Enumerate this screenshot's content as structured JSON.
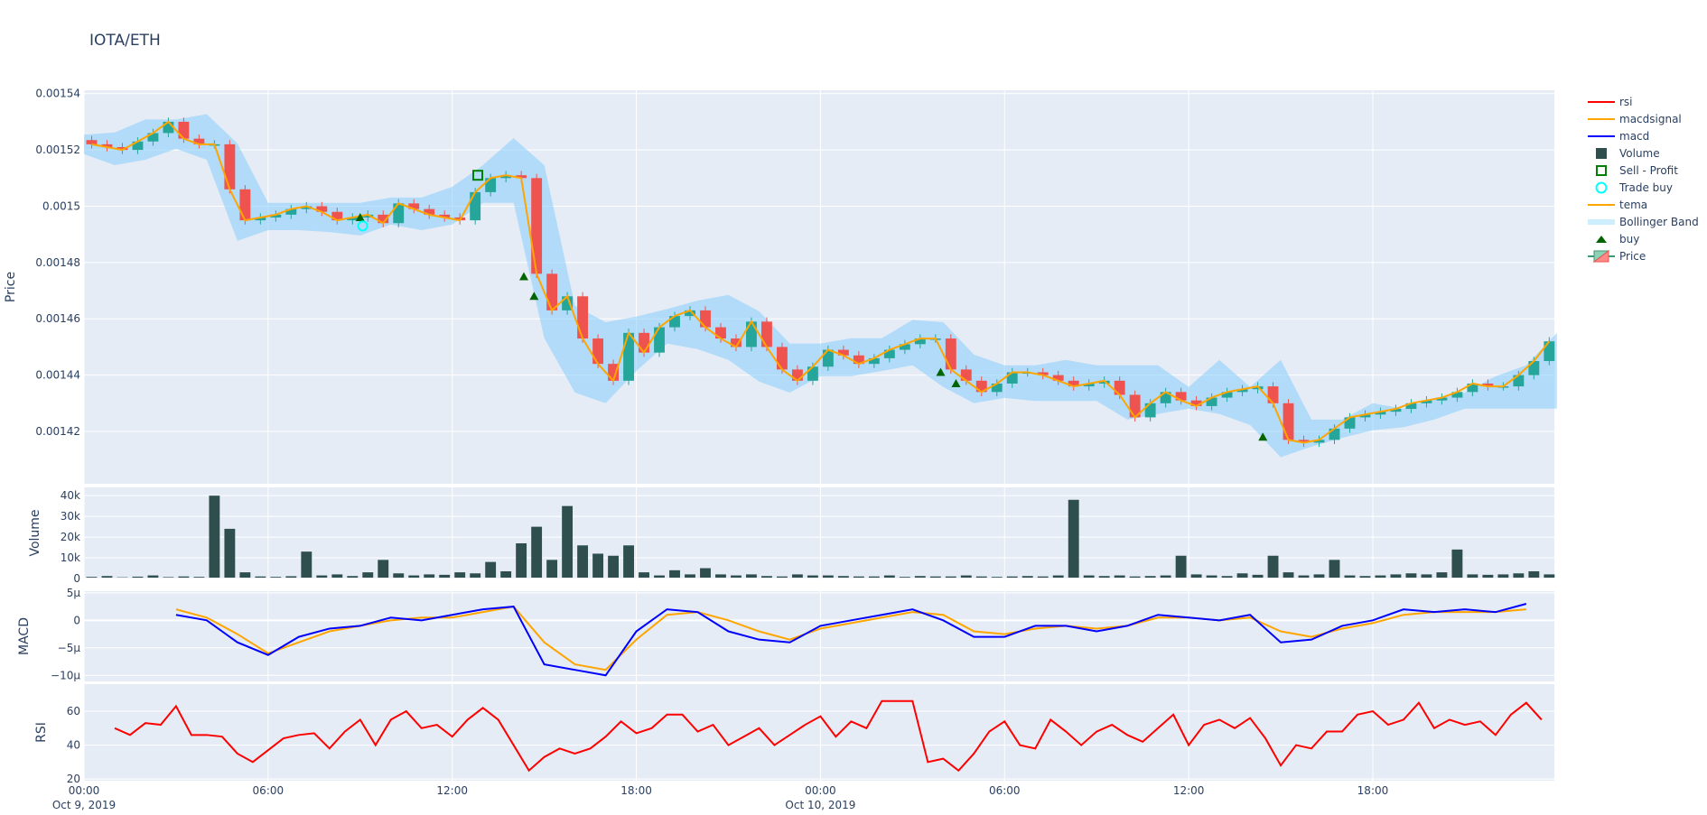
{
  "chart_data": {
    "type": "candlestick",
    "title": "IOTA/ETH",
    "x_range": [
      "2019-10-09 00:00",
      "2019-10-10 23:55"
    ],
    "x_ticks": [
      {
        "time": "00:00",
        "date": "Oct 9, 2019"
      },
      {
        "time": "06:00",
        "date": ""
      },
      {
        "time": "12:00",
        "date": ""
      },
      {
        "time": "18:00",
        "date": ""
      },
      {
        "time": "00:00",
        "date": "Oct 10, 2019"
      },
      {
        "time": "06:00",
        "date": ""
      },
      {
        "time": "12:00",
        "date": ""
      },
      {
        "time": "18:00",
        "date": ""
      }
    ],
    "grid": true,
    "legend_placement": "right",
    "legend": [
      "rsi",
      "macdsignal",
      "macd",
      "Volume",
      "Sell - Profit",
      "Trade buy",
      "tema",
      "Bollinger Band",
      "buy",
      "Price"
    ],
    "colors": {
      "increasing": "#26a69a",
      "decreasing": "#ef5350",
      "tema": "#ffa500",
      "bollinger": "#87cefa",
      "volume": "#2f4f4f",
      "macd": "#0000ff",
      "macdsignal": "#ffa500",
      "rsi": "#ff0000",
      "buy": "#006400",
      "sell_profit": "#008000",
      "trade_buy": "#00ffff",
      "plot_bg": "#e5ecf6"
    },
    "panels": {
      "price": {
        "ylabel": "Price",
        "ylim": [
          0.0014014,
          0.0015412
        ],
        "ticks": [
          {
            "v": 0.00142,
            "label": "0.00142"
          },
          {
            "v": 0.00144,
            "label": "0.00144"
          },
          {
            "v": 0.00146,
            "label": "0.00146"
          },
          {
            "v": 0.00148,
            "label": "0.00148"
          },
          {
            "v": 0.0015,
            "label": "0.0015"
          },
          {
            "v": 0.00152,
            "label": "0.00152"
          },
          {
            "v": 0.00154,
            "label": "0.00154"
          }
        ]
      },
      "volume": {
        "ylabel": "Volume",
        "ylim": [
          0,
          44000
        ],
        "ticks": [
          {
            "v": 0,
            "label": "0"
          },
          {
            "v": 10000,
            "label": "10k"
          },
          {
            "v": 20000,
            "label": "20k"
          },
          {
            "v": 30000,
            "label": "30k"
          },
          {
            "v": 40000,
            "label": "40k"
          }
        ]
      },
      "macd": {
        "ylabel": "MACD",
        "ylim": [
          -1.11e-05,
          5.3e-06
        ],
        "ticks": [
          {
            "v": 5e-06,
            "label": "5μ"
          },
          {
            "v": 0,
            "label": "0"
          },
          {
            "v": -5e-06,
            "label": "−5μ"
          },
          {
            "v": -1e-05,
            "label": "−10μ"
          }
        ]
      },
      "rsi": {
        "ylabel": "RSI",
        "ylim": [
          19,
          76
        ],
        "ticks": [
          {
            "v": 20,
            "label": "20"
          },
          {
            "v": 40,
            "label": "40"
          },
          {
            "v": 60,
            "label": "60"
          }
        ]
      }
    },
    "candles": {
      "start": "2019-10-09 00:00",
      "interval_minutes": 30,
      "close": [
        0.001522,
        0.001521,
        0.00152,
        0.001523,
        0.001526,
        0.00153,
        0.001524,
        0.001522,
        0.001522,
        0.001506,
        0.001495,
        0.001496,
        0.001497,
        0.001499,
        0.0015,
        0.001498,
        0.001495,
        0.001496,
        0.001497,
        0.001494,
        0.001501,
        0.001499,
        0.001497,
        0.001496,
        0.001495,
        0.001505,
        0.00151,
        0.001511,
        0.00151,
        0.001476,
        0.001463,
        0.001468,
        0.001453,
        0.001444,
        0.001438,
        0.001455,
        0.001448,
        0.001457,
        0.001461,
        0.001463,
        0.001457,
        0.001453,
        0.00145,
        0.001459,
        0.00145,
        0.001442,
        0.001438,
        0.001443,
        0.001449,
        0.001447,
        0.001444,
        0.001446,
        0.001449,
        0.001451,
        0.001453,
        0.001453,
        0.001442,
        0.001438,
        0.001434,
        0.001437,
        0.001441,
        0.001441,
        0.00144,
        0.001438,
        0.001436,
        0.001437,
        0.001438,
        0.001433,
        0.001425,
        0.00143,
        0.001434,
        0.001431,
        0.001429,
        0.001432,
        0.001434,
        0.001435,
        0.001436,
        0.00143,
        0.001417,
        0.001416,
        0.001417,
        0.001421,
        0.001425,
        0.001426,
        0.001427,
        0.001428,
        0.00143,
        0.001431,
        0.001432,
        0.001434,
        0.001437,
        0.001436,
        0.001436,
        0.00144,
        0.001445,
        0.001452
      ],
      "volume": [
        800,
        1200,
        600,
        900,
        1500,
        700,
        1000,
        800,
        40000,
        24000,
        3000,
        1000,
        800,
        1100,
        13000,
        1500,
        2000,
        1200,
        3000,
        9000,
        2500,
        1500,
        2000,
        1800,
        3000,
        2500,
        8000,
        3500,
        17000,
        25000,
        9000,
        35000,
        16000,
        12000,
        11000,
        16000,
        3000,
        1500,
        4000,
        2000,
        5000,
        2000,
        1500,
        2000,
        1200,
        1000,
        2000,
        1500,
        1500,
        1200,
        1000,
        1000,
        1500,
        800,
        1200,
        1000,
        1000,
        1500,
        1000,
        800,
        1000,
        1200,
        1000,
        1500,
        38000,
        1500,
        1200,
        1500,
        1000,
        1200,
        1500,
        11000,
        2000,
        1500,
        1200,
        2500,
        1800,
        11000,
        3000,
        1500,
        2000,
        9000,
        1500,
        1200,
        1500,
        2000,
        2500,
        2000,
        3000,
        14000,
        2000,
        1800,
        2000,
        2500,
        3500,
        2000
      ]
    },
    "bollinger": {
      "start": "2019-10-09 00:00",
      "interval_minutes": 60,
      "upper": [
        0.0015254,
        0.0015262,
        0.0015308,
        0.0015308,
        0.0015327,
        0.0015223,
        0.0015012,
        0.0015012,
        0.0015012,
        0.0015012,
        0.0015031,
        0.0015031,
        0.0015069,
        0.0015146,
        0.0015242,
        0.0015146,
        0.0014646,
        0.0014588,
        0.0014608,
        0.0014635,
        0.0014665,
        0.0014685,
        0.0014627,
        0.0014512,
        0.0014512,
        0.0014531,
        0.0014531,
        0.0014596,
        0.0014588,
        0.0014473,
        0.0014435,
        0.0014435,
        0.0014454,
        0.0014435,
        0.0014435,
        0.0014435,
        0.0014358,
        0.0014454,
        0.0014358,
        0.0014454,
        0.0014242,
        0.0014242,
        0.00143,
        0.0014281,
        0.0014319,
        0.0014338,
        0.0014396,
        0.0014435,
        0.001455
      ],
      "lower": [
        0.0015185,
        0.0015146,
        0.0015165,
        0.0015204,
        0.0015165,
        0.0014877,
        0.0014915,
        0.0014915,
        0.0014908,
        0.0014896,
        0.0014935,
        0.0014915,
        0.0014935,
        0.0015012,
        0.0015012,
        0.0014531,
        0.0014338,
        0.00143,
        0.0014415,
        0.0014512,
        0.0014492,
        0.0014454,
        0.0014377,
        0.0014338,
        0.0014396,
        0.0014396,
        0.0014415,
        0.0014435,
        0.0014358,
        0.00143,
        0.0014319,
        0.0014308,
        0.0014308,
        0.0014308,
        0.0014242,
        0.0014262,
        0.0014281,
        0.0014262,
        0.0014223,
        0.0014108,
        0.0014146,
        0.0014177,
        0.0014204,
        0.0014215,
        0.0014242,
        0.0014281,
        0.0014281,
        0.0014281,
        0.0014281
      ]
    },
    "macd": {
      "start": "2019-10-09 03:00",
      "interval_minutes": 60,
      "macd": [
        1e-06,
        0,
        -4e-06,
        -6.3e-06,
        -3e-06,
        -1.5e-06,
        -1e-06,
        5e-07,
        0,
        1e-06,
        2e-06,
        2.5e-06,
        -8e-06,
        -9e-06,
        -1e-05,
        -2e-06,
        2e-06,
        1.5e-06,
        -2e-06,
        -3.5e-06,
        -4e-06,
        -1e-06,
        0,
        1e-06,
        2e-06,
        0,
        -3e-06,
        -3e-06,
        -1e-06,
        -1e-06,
        -2e-06,
        -1e-06,
        1e-06,
        5e-07,
        0,
        1e-06,
        -4e-06,
        -3.5e-06,
        -1e-06,
        0,
        2e-06,
        1.5e-06,
        2e-06,
        1.5e-06,
        3e-06
      ],
      "macdsignal": [
        2e-06,
        5e-07,
        -2.5e-06,
        -6e-06,
        -4e-06,
        -2e-06,
        -1e-06,
        0,
        5e-07,
        5e-07,
        1.5e-06,
        2.5e-06,
        -4e-06,
        -8e-06,
        -9e-06,
        -3.5e-06,
        1e-06,
        1.5e-06,
        0,
        -2e-06,
        -3.5e-06,
        -1.5e-06,
        -5e-07,
        5e-07,
        1.5e-06,
        1e-06,
        -2e-06,
        -2.5e-06,
        -1.5e-06,
        -1e-06,
        -1.5e-06,
        -1e-06,
        5e-07,
        5e-07,
        0,
        5e-07,
        -2e-06,
        -3e-06,
        -1.5e-06,
        -5e-07,
        1e-06,
        1.5e-06,
        1.5e-06,
        1.5e-06,
        2e-06
      ]
    },
    "rsi": {
      "start": "2019-10-09 01:00",
      "interval_minutes": 30,
      "values": [
        50,
        46,
        53,
        52,
        63,
        46,
        46,
        45,
        35,
        30,
        37,
        44,
        46,
        47,
        38,
        48,
        55,
        40,
        55,
        60,
        50,
        52,
        45,
        55,
        62,
        55,
        40,
        25,
        33,
        38,
        35,
        38,
        45,
        54,
        47,
        50,
        58,
        58,
        48,
        52,
        40,
        45,
        50,
        40,
        46,
        52,
        57,
        45,
        54,
        50,
        66,
        66,
        66,
        30,
        32,
        25,
        35,
        48,
        54,
        40,
        38,
        55,
        48,
        40,
        48,
        52,
        46,
        42,
        50,
        58,
        40,
        52,
        55,
        50,
        56,
        44,
        28,
        40,
        38,
        48,
        48,
        58,
        60,
        52,
        55,
        65,
        50,
        55,
        52,
        54,
        46,
        58,
        65,
        55
      ]
    },
    "buy_signals": [
      {
        "time": "2019-10-09 09:00",
        "price": 0.001496
      },
      {
        "time": "2019-10-09 14:20",
        "price": 0.001475
      },
      {
        "time": "2019-10-09 14:40",
        "price": 0.001468
      },
      {
        "time": "2019-10-10 03:55",
        "price": 0.001441
      },
      {
        "time": "2019-10-10 04:25",
        "price": 0.001437
      },
      {
        "time": "2019-10-10 14:25",
        "price": 0.001418
      }
    ],
    "trade_buy": [
      {
        "time": "2019-10-09 09:05",
        "price": 0.001493
      }
    ],
    "sell_profit": [
      {
        "time": "2019-10-09 12:50",
        "price": 0.001511
      }
    ]
  }
}
